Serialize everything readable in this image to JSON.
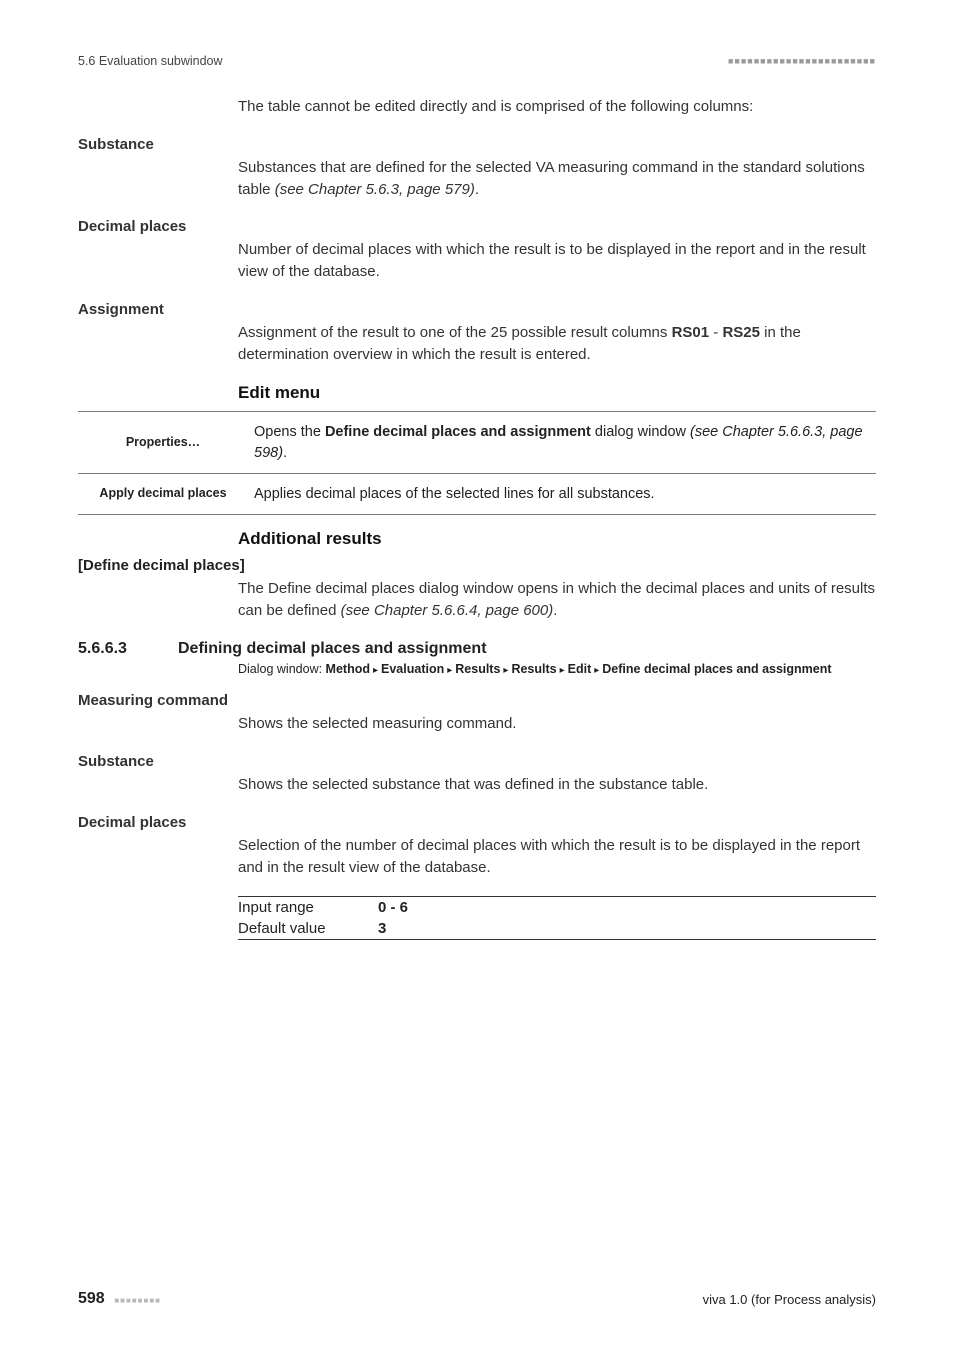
{
  "header": {
    "left": "5.6 Evaluation subwindow",
    "right_squares": "■■■■■■■■■■■■■■■■■■■■■■■"
  },
  "intro_para": "The table cannot be edited directly and is comprised of the following columns:",
  "terms1": [
    {
      "heading": "Substance",
      "body_pre": "Substances that are defined for the selected VA measuring command in the standard solutions table ",
      "body_italic": "(see Chapter 5.6.3, page 579)",
      "body_post": "."
    },
    {
      "heading": "Decimal places",
      "body_pre": "Number of decimal places with which the result is to be displayed in the report and in the result view of the database.",
      "body_italic": "",
      "body_post": ""
    },
    {
      "heading": "Assignment",
      "body_pre": "Assignment of the result to one of the 25 possible result columns ",
      "body_bold1": "RS01",
      "body_mid": " - ",
      "body_bold2": "RS25",
      "body_post": " in the determination overview in which the result is entered."
    }
  ],
  "edit_menu": {
    "title": "Edit menu",
    "rows": [
      {
        "label": "Properties…",
        "desc_pre": "Opens the ",
        "desc_bold": "Define decimal places and assignment",
        "desc_mid": " dialog window ",
        "desc_italic": "(see Chapter 5.6.6.3, page 598)",
        "desc_post": "."
      },
      {
        "label": "Apply decimal places",
        "desc_pre": "Applies decimal places of the selected lines for all substances.",
        "desc_bold": "",
        "desc_mid": "",
        "desc_italic": "",
        "desc_post": ""
      }
    ]
  },
  "additional": {
    "title": "Additional results",
    "bracket": "[Define decimal places]",
    "body_pre": "The Define decimal places dialog window opens in which the decimal places and units of results can be defined ",
    "body_italic": "(see Chapter 5.6.6.4, page 600)",
    "body_post": "."
  },
  "numbered": {
    "num": "5.6.6.3",
    "title": "Defining decimal places and assignment",
    "dialog_prefix": "Dialog window: ",
    "crumbs": [
      "Method",
      "Evaluation",
      "Results",
      "Results",
      "Edit",
      "Define decimal places and assignment"
    ]
  },
  "terms2": [
    {
      "heading": "Measuring command",
      "body": "Shows the selected measuring command."
    },
    {
      "heading": "Substance",
      "body": "Shows the selected substance that was defined in the substance table."
    },
    {
      "heading": "Decimal places",
      "body": "Selection of the number of decimal places with which the result is to be displayed in the report and in the result view of the database."
    }
  ],
  "range": {
    "rows": [
      {
        "label": "Input range",
        "value": "0 - 6"
      },
      {
        "label": "Default value",
        "value": "3"
      }
    ]
  },
  "footer": {
    "page": "598",
    "squares": "■■■■■■■■",
    "right": "viva 1.0 (for Process analysis)"
  }
}
